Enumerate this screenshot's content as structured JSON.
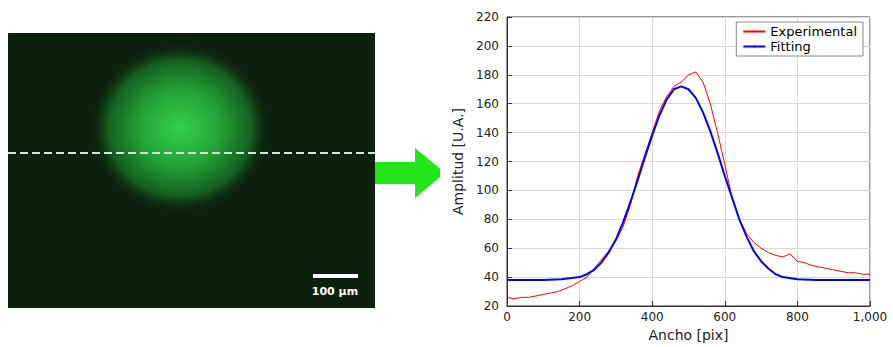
{
  "image": {
    "scale_bar": "100 µm"
  },
  "chart_data": {
    "type": "line",
    "xlabel": "Ancho [pix]",
    "ylabel": "Amplitud [U.A.]",
    "xlim": [
      0,
      1000
    ],
    "xticks": [
      0,
      200,
      400,
      600,
      800,
      1000
    ],
    "ylim": [
      20,
      220
    ],
    "yticks": [
      20,
      40,
      60,
      80,
      100,
      120,
      140,
      160,
      180,
      200,
      220
    ],
    "grid": true,
    "legend": "upper right",
    "series": [
      {
        "name": "Experimental",
        "color": "#ff0000",
        "x": [
          0,
          20,
          40,
          60,
          80,
          100,
          120,
          140,
          160,
          180,
          200,
          220,
          240,
          260,
          280,
          300,
          320,
          340,
          360,
          380,
          400,
          420,
          440,
          460,
          480,
          500,
          520,
          540,
          560,
          580,
          600,
          620,
          640,
          660,
          680,
          700,
          720,
          740,
          760,
          780,
          800,
          820,
          840,
          860,
          880,
          900,
          920,
          940,
          960,
          980,
          1000
        ],
        "values": [
          26,
          25,
          26,
          26,
          27,
          28,
          29,
          30,
          32,
          34,
          37,
          40,
          46,
          52,
          58,
          65,
          75,
          90,
          110,
          125,
          140,
          155,
          165,
          172,
          175,
          180,
          182,
          175,
          160,
          140,
          118,
          95,
          80,
          70,
          64,
          60,
          57,
          55,
          54,
          56,
          51,
          50,
          48,
          47,
          46,
          45,
          44,
          43,
          43,
          42,
          42
        ]
      },
      {
        "name": "Fitting",
        "color": "#0000ff",
        "x": [
          0,
          100,
          150,
          200,
          220,
          240,
          260,
          280,
          300,
          320,
          340,
          360,
          380,
          400,
          420,
          440,
          460,
          480,
          500,
          520,
          540,
          560,
          580,
          600,
          620,
          640,
          660,
          680,
          700,
          720,
          740,
          760,
          800,
          850,
          900,
          1000
        ],
        "values": [
          38,
          38,
          38.5,
          40,
          42,
          45,
          50,
          57,
          66,
          78,
          92,
          107,
          123,
          138,
          152,
          163,
          170,
          172,
          170,
          164,
          154,
          141,
          126,
          110,
          95,
          80,
          68,
          58,
          51,
          46,
          42,
          40,
          38.5,
          38,
          38,
          38
        ]
      }
    ]
  }
}
